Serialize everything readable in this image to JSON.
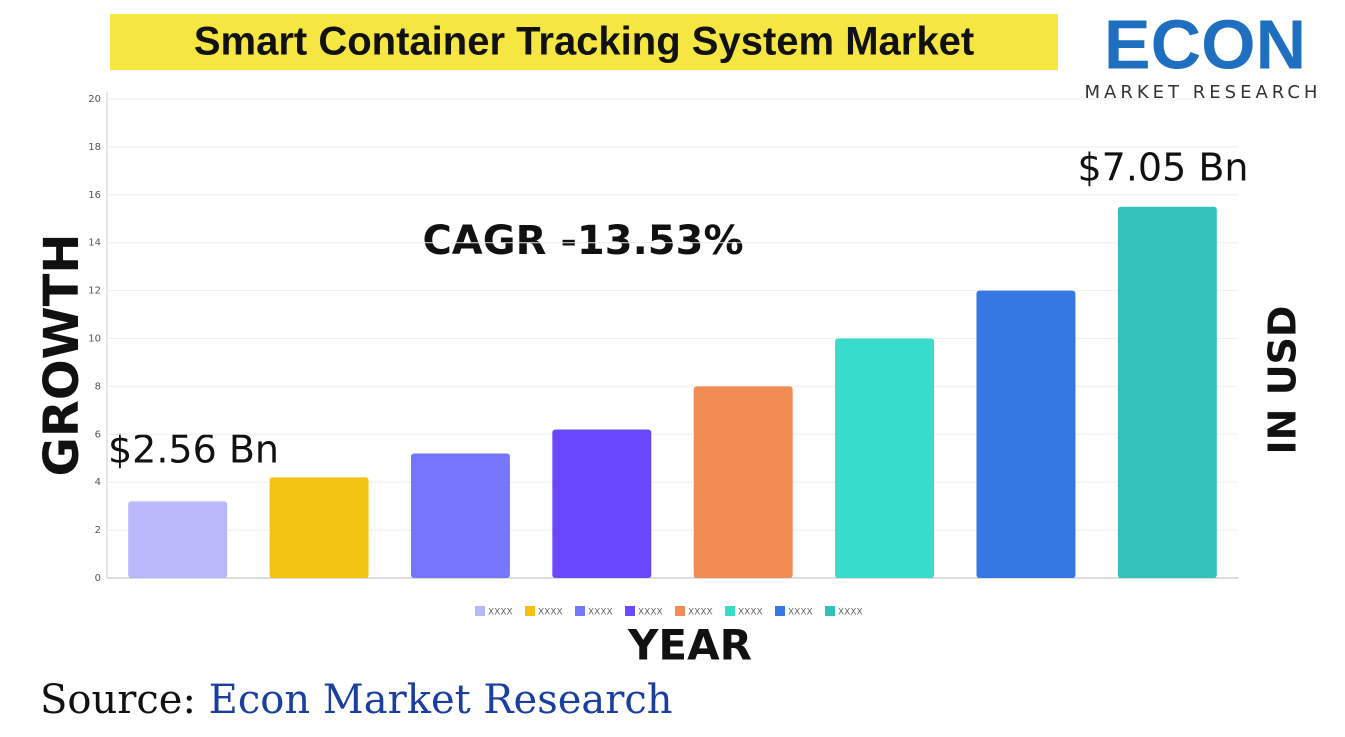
{
  "chart_data": {
    "type": "bar",
    "title": "Smart Container Tracking System Market",
    "logo": {
      "brand": "ECON",
      "tagline": "MARKET RESEARCH"
    },
    "categories": [
      "XXXX",
      "XXXX",
      "XXXX",
      "XXXX",
      "XXXX",
      "XXXX",
      "XXXX",
      "XXXX"
    ],
    "values": [
      3.2,
      4.2,
      5.2,
      6.2,
      8,
      10,
      12,
      15.5
    ],
    "colors": [
      "#b8b8fb",
      "#f2c313",
      "#7577fb",
      "#6a48fb",
      "#f28c55",
      "#37dccb",
      "#3578e3",
      "#35c1bb"
    ],
    "ylim": [
      0,
      20
    ],
    "yticks": [
      0,
      2,
      4,
      6,
      8,
      10,
      12,
      14,
      16,
      18,
      20
    ],
    "grid": true,
    "y_label": "GROWTH",
    "x_label": "YEAR",
    "y2_label": "IN USD",
    "annotations": {
      "start": "$2.56 Bn",
      "end": "$7.05 Bn",
      "cagr": "CAGR -13.53%"
    },
    "source": {
      "label": "Source:",
      "name": " Econ Market Research"
    }
  }
}
